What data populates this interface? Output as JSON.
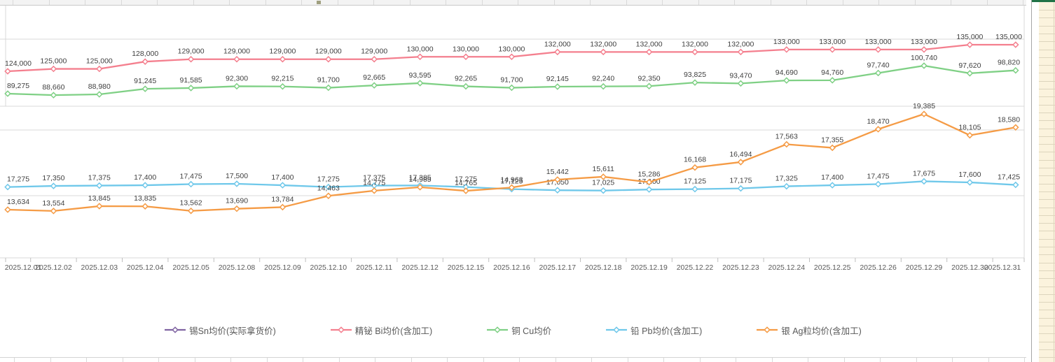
{
  "chart_data": {
    "type": "line",
    "x": [
      "2025.12.01",
      "2025.12.02",
      "2025.12.03",
      "2025.12.04",
      "2025.12.05",
      "2025.12.08",
      "2025.12.09",
      "2025.12.10",
      "2025.12.11",
      "2025.12.12",
      "2025.12.15",
      "2025.12.16",
      "2025.12.17",
      "2025.12.18",
      "2025.12.19",
      "2025.12.22",
      "2025.12.23",
      "2025.12.24",
      "2025.12.25",
      "2025.12.26",
      "2025.12.29",
      "2025.12.30",
      "2025.12.31"
    ],
    "series": [
      {
        "name": "锡Sn均价(实际拿货价)",
        "color": "#8064a2",
        "values": []
      },
      {
        "name": "精铋 Bi均价(含加工)",
        "color": "#f47f8e",
        "values": [
          124000,
          125000,
          125000,
          128000,
          129000,
          129000,
          129000,
          129000,
          129000,
          130000,
          130000,
          130000,
          132000,
          132000,
          132000,
          132000,
          132000,
          133000,
          133000,
          133000,
          133000,
          135000,
          135000
        ]
      },
      {
        "name": "铜 Cu均价",
        "color": "#7fd085",
        "values": [
          89275,
          88660,
          88980,
          91245,
          91585,
          92300,
          92215,
          91700,
          92665,
          93595,
          92265,
          91700,
          92145,
          92240,
          92350,
          93825,
          93470,
          94690,
          94760,
          97740,
          100740,
          97620,
          98820
        ]
      },
      {
        "name": "铅 Pb均价(含加工)",
        "color": "#6fc8ea",
        "values": [
          17275,
          17350,
          17375,
          17400,
          17475,
          17500,
          17400,
          17275,
          17375,
          17385,
          17275,
          17125,
          17050,
          17025,
          17100,
          17125,
          17175,
          17325,
          17400,
          17475,
          17675,
          17600,
          17425
        ]
      },
      {
        "name": "银 Ag粒均价(含加工)",
        "color": "#f59b45",
        "values": [
          13634,
          13554,
          13845,
          13835,
          13562,
          13690,
          13784,
          14463,
          14775,
          14985,
          14765,
          14963,
          15442,
          15611,
          15286,
          16168,
          16494,
          17563,
          17355,
          18470,
          19385,
          18105,
          18580
        ]
      }
    ],
    "data_labels": true,
    "legend_position": "bottom",
    "gridlines": true,
    "label_color": "#3f3f3f",
    "axis_text_color": "#595959",
    "gridline_color": "#d9d9d9"
  }
}
